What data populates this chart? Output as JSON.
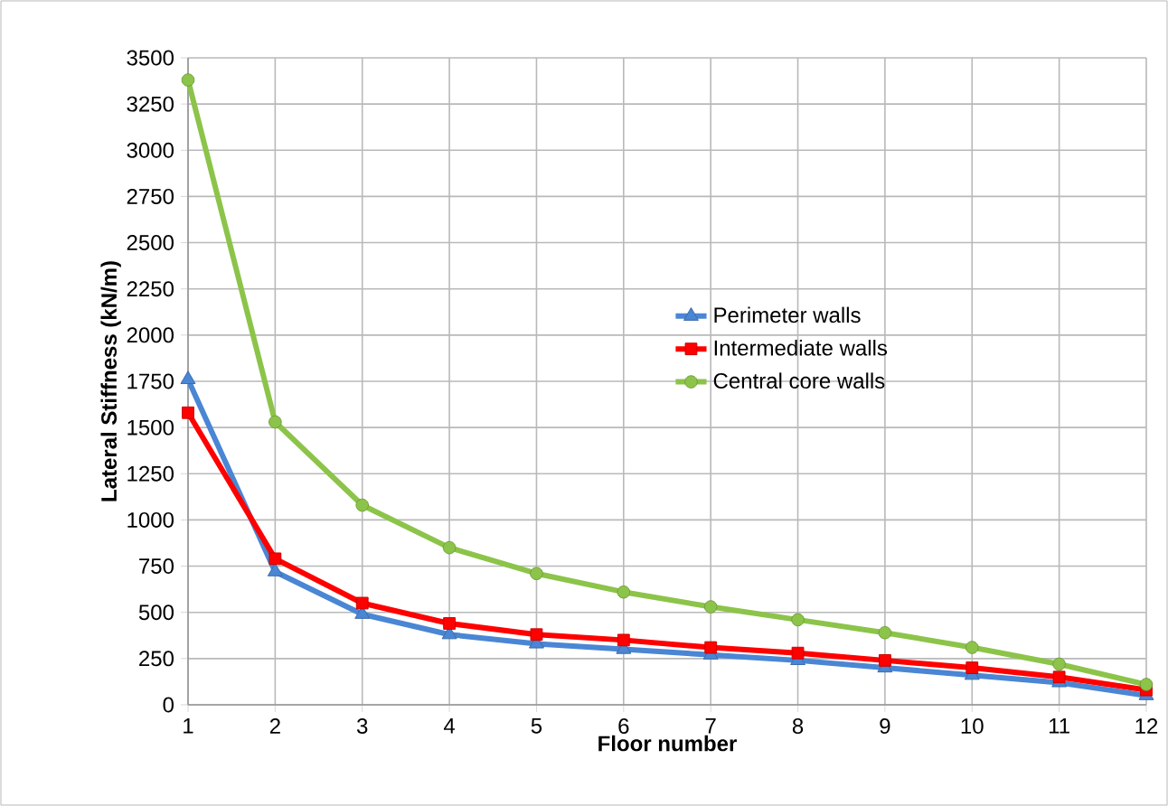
{
  "chart_data": {
    "type": "line",
    "xlabel": "Floor number",
    "ylabel": "Lateral Stiffness (kN/m)",
    "categories": [
      "1",
      "2",
      "3",
      "4",
      "5",
      "6",
      "7",
      "8",
      "9",
      "10",
      "11",
      "12"
    ],
    "ylim": [
      0,
      3500
    ],
    "yticks": [
      0,
      250,
      500,
      750,
      1000,
      1250,
      1500,
      1750,
      2000,
      2250,
      2500,
      2750,
      3000,
      3250,
      3500
    ],
    "grid": true,
    "legend": "center",
    "series": [
      {
        "name": "Perimeter walls",
        "color": "#4a86d4",
        "marker": "triangle",
        "values": [
          1760,
          720,
          490,
          380,
          330,
          300,
          270,
          240,
          200,
          160,
          120,
          50
        ]
      },
      {
        "name": "Intermediate walls",
        "color": "#ff0000",
        "marker": "square",
        "values": [
          1580,
          790,
          550,
          440,
          380,
          350,
          310,
          280,
          240,
          200,
          150,
          80
        ]
      },
      {
        "name": "Central core walls",
        "color": "#8cc44a",
        "marker": "circle",
        "values": [
          3380,
          1530,
          1080,
          850,
          710,
          610,
          530,
          460,
          390,
          310,
          220,
          110
        ]
      }
    ]
  }
}
